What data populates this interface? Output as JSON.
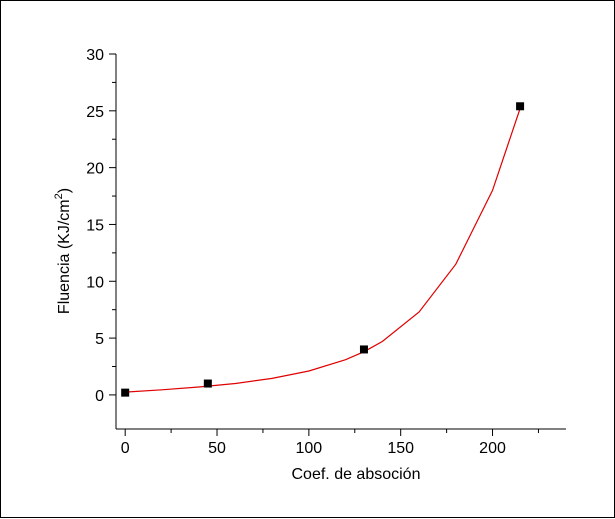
{
  "chart_data": {
    "type": "scatter",
    "title": "",
    "xlabel": "Coef. de absoción",
    "ylabel": "Fluencia (KJ/cm",
    "ylabel_sup": "2",
    "ylabel_close": ")",
    "xlim": [
      -5,
      240
    ],
    "ylim": [
      -3,
      30
    ],
    "x_ticks": [
      0,
      50,
      100,
      150,
      200
    ],
    "y_ticks": [
      0,
      5,
      10,
      15,
      20,
      25,
      30
    ],
    "x_tick_labels": [
      "0",
      "50",
      "100",
      "150",
      "200"
    ],
    "y_tick_labels": [
      "0",
      "5",
      "10",
      "15",
      "20",
      "25",
      "30"
    ],
    "grid": false,
    "legend": "none",
    "series": [
      {
        "marker": "square",
        "color": "#000000",
        "x": [
          0,
          45,
          130,
          215
        ],
        "y": [
          0.2,
          1.0,
          4.0,
          25.4
        ]
      }
    ],
    "fit_curve": {
      "type": "exponential",
      "color": "#e00000",
      "x": [
        0,
        20,
        40,
        60,
        80,
        100,
        120,
        130,
        140,
        160,
        180,
        200,
        215
      ],
      "y": [
        0.25,
        0.45,
        0.7,
        1.0,
        1.45,
        2.1,
        3.1,
        3.8,
        4.7,
        7.3,
        11.5,
        18.0,
        25.2
      ]
    }
  }
}
